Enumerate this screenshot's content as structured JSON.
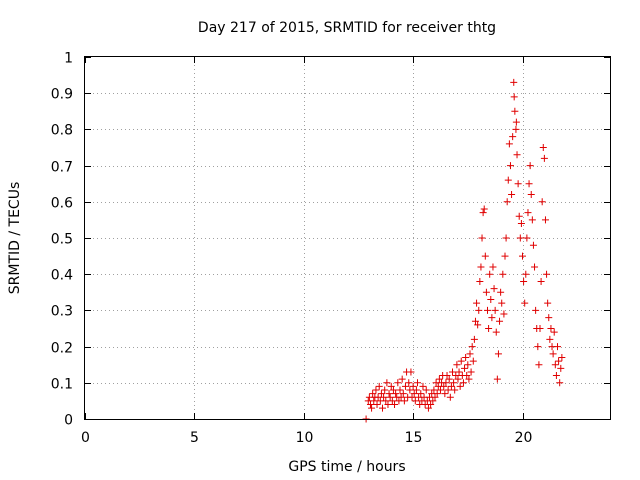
{
  "chart_data": {
    "type": "scatter",
    "title": "Day 217 of 2015, SRMTID for receiver thtg",
    "xlabel": "GPS time / hours",
    "ylabel": "SRMTID / TECUs",
    "xlim": [
      0,
      24
    ],
    "ylim": [
      0,
      1
    ],
    "x_ticks": [
      0,
      5,
      10,
      15,
      20
    ],
    "x_tick_labels": [
      "0",
      "5",
      "10",
      "15",
      "20"
    ],
    "y_ticks": [
      0,
      0.1,
      0.2,
      0.3,
      0.4,
      0.5,
      0.6,
      0.7,
      0.8,
      0.9,
      1
    ],
    "y_tick_labels": [
      "0",
      "0.1",
      "0.2",
      "0.3",
      "0.4",
      "0.5",
      "0.6",
      "0.7",
      "0.8",
      "0.9",
      "1"
    ],
    "grid": true,
    "legend": "none",
    "marker": "+",
    "color": "#e00000",
    "series": [
      {
        "name": "SRMTID",
        "points": [
          [
            12.85,
            0.0
          ],
          [
            12.95,
            0.05
          ],
          [
            13.0,
            0.06
          ],
          [
            13.05,
            0.04
          ],
          [
            13.1,
            0.03
          ],
          [
            13.15,
            0.07
          ],
          [
            13.2,
            0.05
          ],
          [
            13.25,
            0.06
          ],
          [
            13.3,
            0.08
          ],
          [
            13.35,
            0.04
          ],
          [
            13.4,
            0.06
          ],
          [
            13.45,
            0.09
          ],
          [
            13.5,
            0.05
          ],
          [
            13.55,
            0.07
          ],
          [
            13.6,
            0.03
          ],
          [
            13.65,
            0.06
          ],
          [
            13.7,
            0.08
          ],
          [
            13.75,
            0.05
          ],
          [
            13.8,
            0.1
          ],
          [
            13.85,
            0.04
          ],
          [
            13.9,
            0.07
          ],
          [
            13.95,
            0.06
          ],
          [
            14.0,
            0.09
          ],
          [
            14.05,
            0.05
          ],
          [
            14.1,
            0.08
          ],
          [
            14.15,
            0.04
          ],
          [
            14.2,
            0.07
          ],
          [
            14.25,
            0.06
          ],
          [
            14.3,
            0.1
          ],
          [
            14.35,
            0.05
          ],
          [
            14.4,
            0.08
          ],
          [
            14.45,
            0.06
          ],
          [
            14.5,
            0.11
          ],
          [
            14.55,
            0.07
          ],
          [
            14.6,
            0.05
          ],
          [
            14.65,
            0.09
          ],
          [
            14.7,
            0.13
          ],
          [
            14.75,
            0.06
          ],
          [
            14.8,
            0.1
          ],
          [
            14.85,
            0.08
          ],
          [
            14.9,
            0.13
          ],
          [
            14.95,
            0.06
          ],
          [
            15.0,
            0.09
          ],
          [
            15.05,
            0.07
          ],
          [
            15.1,
            0.05
          ],
          [
            15.15,
            0.08
          ],
          [
            15.2,
            0.1
          ],
          [
            15.25,
            0.06
          ],
          [
            15.3,
            0.04
          ],
          [
            15.35,
            0.07
          ],
          [
            15.4,
            0.05
          ],
          [
            15.45,
            0.09
          ],
          [
            15.5,
            0.06
          ],
          [
            15.55,
            0.04
          ],
          [
            15.6,
            0.08
          ],
          [
            15.65,
            0.05
          ],
          [
            15.7,
            0.03
          ],
          [
            15.75,
            0.06
          ],
          [
            15.8,
            0.04
          ],
          [
            15.85,
            0.07
          ],
          [
            15.9,
            0.05
          ],
          [
            15.95,
            0.08
          ],
          [
            16.0,
            0.06
          ],
          [
            16.05,
            0.1
          ],
          [
            16.1,
            0.07
          ],
          [
            16.15,
            0.09
          ],
          [
            16.2,
            0.11
          ],
          [
            16.25,
            0.08
          ],
          [
            16.3,
            0.1
          ],
          [
            16.35,
            0.12
          ],
          [
            16.4,
            0.09
          ],
          [
            16.45,
            0.07
          ],
          [
            16.5,
            0.1
          ],
          [
            16.55,
            0.12
          ],
          [
            16.6,
            0.08
          ],
          [
            16.65,
            0.11
          ],
          [
            16.7,
            0.06
          ],
          [
            16.75,
            0.09
          ],
          [
            16.8,
            0.13
          ],
          [
            16.85,
            0.1
          ],
          [
            16.9,
            0.08
          ],
          [
            16.95,
            0.12
          ],
          [
            17.0,
            0.15
          ],
          [
            17.05,
            0.11
          ],
          [
            17.1,
            0.13
          ],
          [
            17.15,
            0.09
          ],
          [
            17.2,
            0.16
          ],
          [
            17.25,
            0.12
          ],
          [
            17.3,
            0.1
          ],
          [
            17.35,
            0.14
          ],
          [
            17.4,
            0.17
          ],
          [
            17.45,
            0.12
          ],
          [
            17.5,
            0.15
          ],
          [
            17.55,
            0.11
          ],
          [
            17.6,
            0.18
          ],
          [
            17.65,
            0.13
          ],
          [
            17.7,
            0.2
          ],
          [
            17.75,
            0.16
          ],
          [
            17.8,
            0.22
          ],
          [
            17.85,
            0.27
          ],
          [
            17.9,
            0.32
          ],
          [
            17.95,
            0.26
          ],
          [
            18.0,
            0.3
          ],
          [
            18.05,
            0.38
          ],
          [
            18.1,
            0.42
          ],
          [
            18.15,
            0.5
          ],
          [
            18.2,
            0.57
          ],
          [
            18.25,
            0.58
          ],
          [
            18.3,
            0.45
          ],
          [
            18.35,
            0.35
          ],
          [
            18.4,
            0.3
          ],
          [
            18.45,
            0.25
          ],
          [
            18.5,
            0.4
          ],
          [
            18.55,
            0.33
          ],
          [
            18.6,
            0.28
          ],
          [
            18.65,
            0.42
          ],
          [
            18.7,
            0.36
          ],
          [
            18.75,
            0.3
          ],
          [
            18.8,
            0.24
          ],
          [
            18.85,
            0.11
          ],
          [
            18.9,
            0.18
          ],
          [
            18.95,
            0.27
          ],
          [
            19.0,
            0.35
          ],
          [
            19.05,
            0.32
          ],
          [
            19.1,
            0.4
          ],
          [
            19.15,
            0.29
          ],
          [
            19.2,
            0.45
          ],
          [
            19.25,
            0.5
          ],
          [
            19.3,
            0.6
          ],
          [
            19.35,
            0.66
          ],
          [
            19.4,
            0.76
          ],
          [
            19.45,
            0.7
          ],
          [
            19.5,
            0.62
          ],
          [
            19.55,
            0.78
          ],
          [
            19.6,
            0.93
          ],
          [
            19.62,
            0.89
          ],
          [
            19.65,
            0.85
          ],
          [
            19.7,
            0.8
          ],
          [
            19.72,
            0.82
          ],
          [
            19.75,
            0.73
          ],
          [
            19.8,
            0.65
          ],
          [
            19.85,
            0.56
          ],
          [
            19.9,
            0.5
          ],
          [
            19.95,
            0.54
          ],
          [
            20.0,
            0.45
          ],
          [
            20.05,
            0.38
          ],
          [
            20.1,
            0.32
          ],
          [
            20.15,
            0.4
          ],
          [
            20.2,
            0.5
          ],
          [
            20.25,
            0.57
          ],
          [
            20.3,
            0.65
          ],
          [
            20.35,
            0.7
          ],
          [
            20.4,
            0.62
          ],
          [
            20.45,
            0.55
          ],
          [
            20.5,
            0.48
          ],
          [
            20.55,
            0.42
          ],
          [
            20.6,
            0.3
          ],
          [
            20.65,
            0.25
          ],
          [
            20.7,
            0.2
          ],
          [
            20.75,
            0.15
          ],
          [
            20.8,
            0.25
          ],
          [
            20.85,
            0.38
          ],
          [
            20.9,
            0.6
          ],
          [
            20.95,
            0.75
          ],
          [
            21.0,
            0.72
          ],
          [
            21.05,
            0.55
          ],
          [
            21.1,
            0.4
          ],
          [
            21.15,
            0.32
          ],
          [
            21.2,
            0.28
          ],
          [
            21.25,
            0.22
          ],
          [
            21.3,
            0.25
          ],
          [
            21.35,
            0.2
          ],
          [
            21.4,
            0.18
          ],
          [
            21.45,
            0.24
          ],
          [
            21.5,
            0.15
          ],
          [
            21.55,
            0.12
          ],
          [
            21.6,
            0.2
          ],
          [
            21.65,
            0.16
          ],
          [
            21.7,
            0.1
          ],
          [
            21.75,
            0.14
          ],
          [
            21.8,
            0.17
          ]
        ]
      }
    ]
  }
}
